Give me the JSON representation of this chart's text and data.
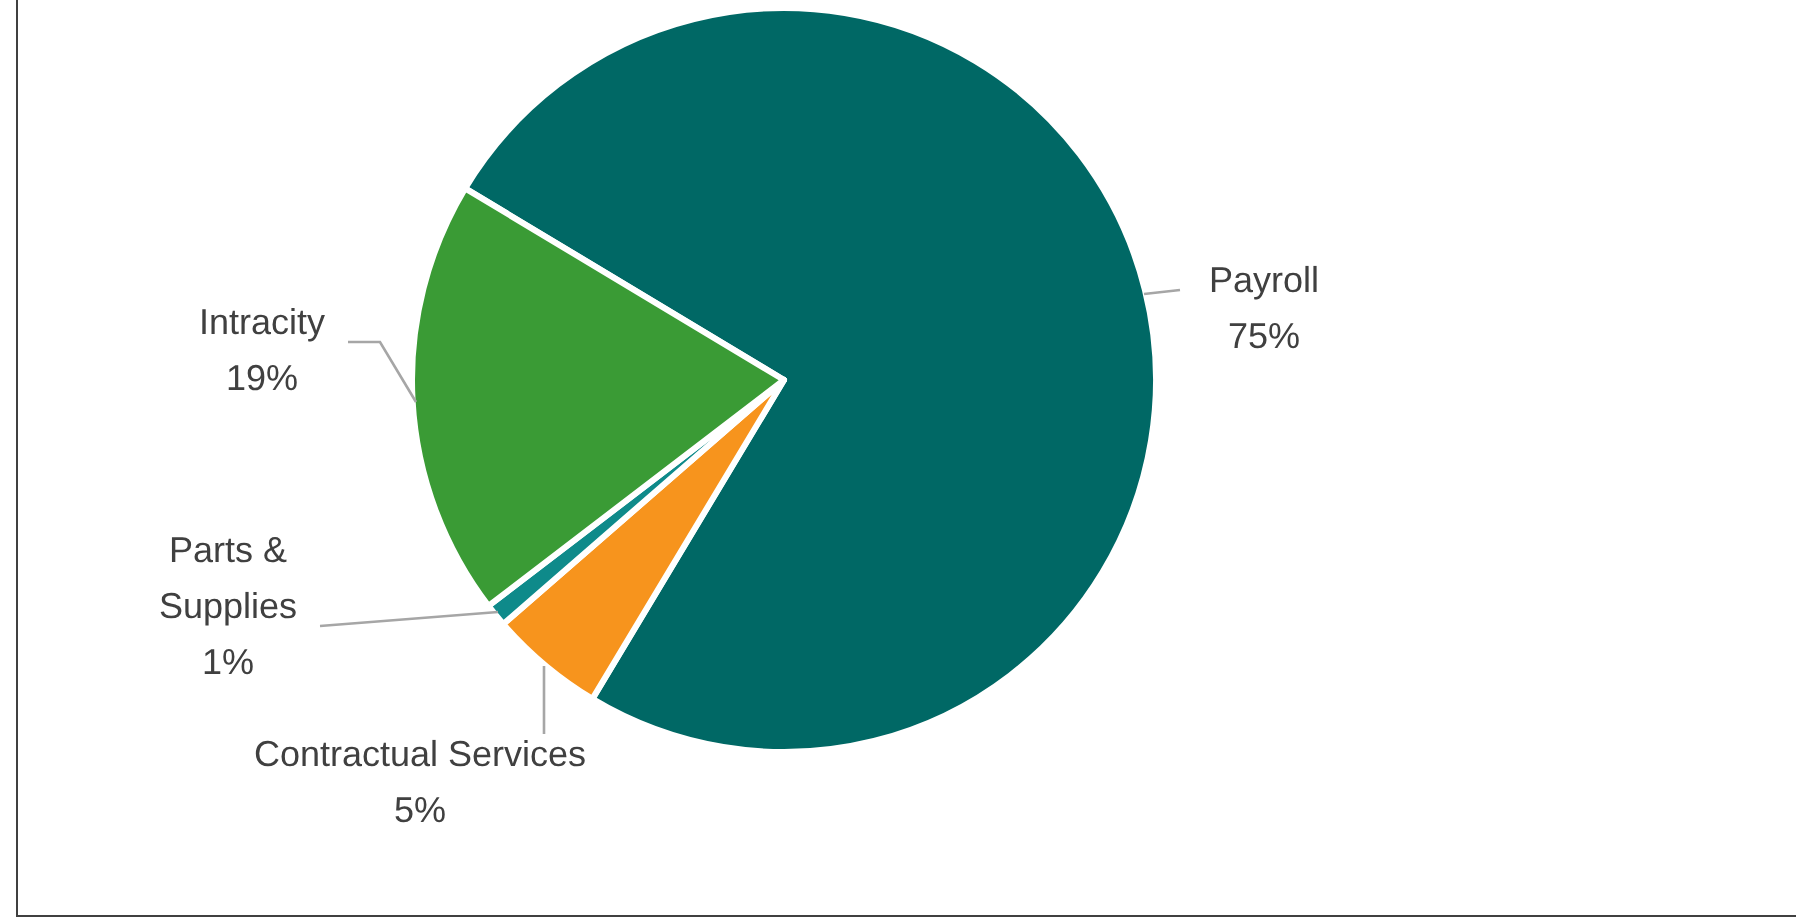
{
  "chart_data": {
    "type": "pie",
    "categories": [
      "Payroll",
      "Contractual Services",
      "Parts & Supplies",
      "Intracity"
    ],
    "values": [
      75,
      5,
      1,
      19
    ],
    "colors": [
      "#006865",
      "#f7941d",
      "#0e8a8a",
      "#3a9b35"
    ],
    "value_labels": [
      "75%",
      "5%",
      "1%",
      "19%"
    ]
  }
}
